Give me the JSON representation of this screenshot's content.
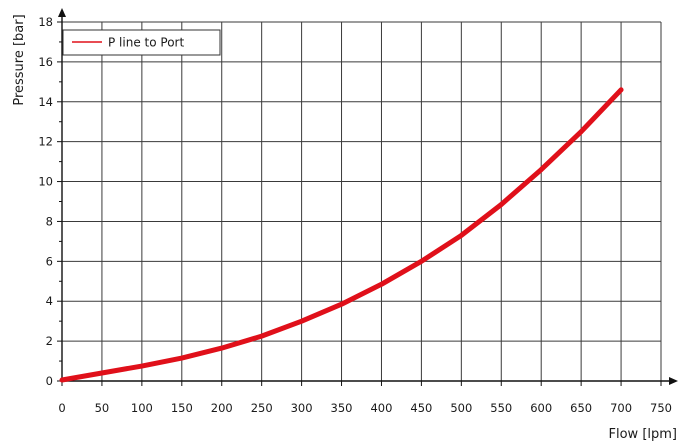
{
  "chart_data": {
    "type": "line",
    "xlabel": "Flow [lpm]",
    "ylabel": "Pressure [bar]",
    "xlim": [
      0,
      750
    ],
    "ylim": [
      0,
      18
    ],
    "x_ticks": [
      0,
      50,
      100,
      150,
      200,
      250,
      300,
      350,
      400,
      450,
      500,
      550,
      600,
      650,
      700,
      750
    ],
    "y_ticks": [
      0,
      2,
      4,
      6,
      8,
      10,
      12,
      14,
      16,
      18
    ],
    "grid": true,
    "legend_position": "top-left",
    "series": [
      {
        "name": "P line to Port",
        "color": "#e0101a",
        "x": [
          0,
          50,
          100,
          150,
          200,
          250,
          300,
          350,
          400,
          450,
          500,
          550,
          600,
          650,
          700
        ],
        "y": [
          0.05,
          0.4,
          0.75,
          1.15,
          1.65,
          2.25,
          3.0,
          3.85,
          4.85,
          6.0,
          7.3,
          8.85,
          10.6,
          12.5,
          14.6
        ]
      }
    ]
  }
}
